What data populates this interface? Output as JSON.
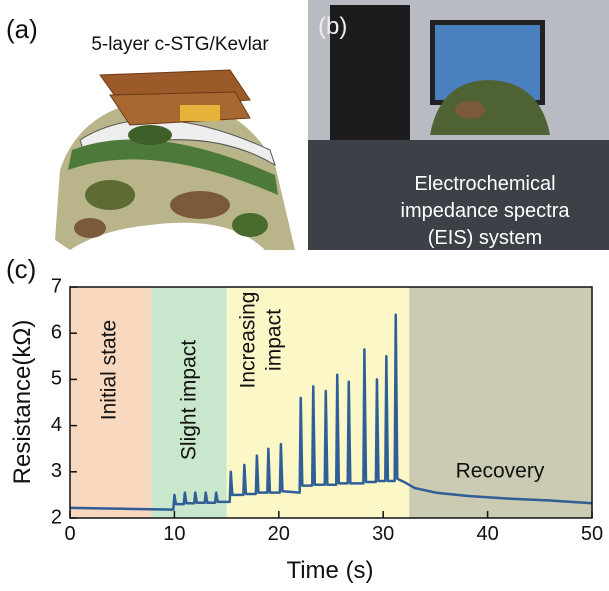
{
  "panel_labels": [
    "(a)",
    "(b)",
    "(c)"
  ],
  "panel_a": {
    "title": "5-layer c-STG/Kevlar"
  },
  "panel_b": {
    "caption": [
      "Electrochemical",
      "impedance spectra",
      "(EIS) system"
    ]
  },
  "chart_data": {
    "type": "line",
    "x_label": "Time (s)",
    "y_label": "Resistance(kΩ)",
    "xlim": [
      0,
      50
    ],
    "ylim": [
      2,
      7
    ],
    "xticks": [
      0,
      10,
      20,
      30,
      40,
      50
    ],
    "yticks": [
      2,
      3,
      4,
      5,
      6,
      7
    ],
    "regions": [
      {
        "label": [
          "Initial state"
        ],
        "start": 0,
        "end": 7.8,
        "color": "#f8d9c0"
      },
      {
        "label": [
          "Slight impact"
        ],
        "start": 7.8,
        "end": 15,
        "color": "#c9e7cc"
      },
      {
        "label": [
          "Increasing",
          "impact"
        ],
        "start": 15,
        "end": 32.5,
        "color": "#fbf7c6"
      },
      {
        "label": [
          "Recovery"
        ],
        "start": 32.5,
        "end": 50,
        "color": "#cbcab2"
      }
    ],
    "series": [
      {
        "color": "#2f5f96",
        "x": [
          0,
          5,
          9.9,
          10,
          10.15,
          10.9,
          11,
          11.15,
          11.9,
          12,
          12.15,
          12.9,
          13,
          13.15,
          13.9,
          14,
          14.15,
          15.3,
          15.4,
          15.55,
          16.6,
          16.7,
          16.85,
          17.8,
          17.9,
          18.05,
          18.9,
          19,
          19.15,
          20.1,
          20.2,
          20.35,
          22,
          22.1,
          22.25,
          23.2,
          23.3,
          23.45,
          24.4,
          24.5,
          24.65,
          25.5,
          25.6,
          25.75,
          26.6,
          26.7,
          26.85,
          28.1,
          28.2,
          28.35,
          29.3,
          29.4,
          29.55,
          30.2,
          30.3,
          30.45,
          31.1,
          31.2,
          31.35,
          32,
          33,
          35,
          38,
          42,
          46,
          50
        ],
        "values": [
          2.22,
          2.2,
          2.18,
          2.5,
          2.3,
          2.3,
          2.55,
          2.32,
          2.32,
          2.55,
          2.33,
          2.33,
          2.55,
          2.33,
          2.33,
          2.55,
          2.35,
          2.35,
          3.0,
          2.5,
          2.5,
          3.15,
          2.52,
          2.52,
          3.35,
          2.55,
          2.55,
          3.5,
          2.55,
          2.55,
          3.6,
          2.58,
          2.55,
          4.6,
          2.7,
          2.7,
          4.85,
          2.72,
          2.72,
          4.75,
          2.72,
          2.72,
          5.1,
          2.75,
          2.75,
          4.95,
          2.75,
          2.75,
          5.65,
          2.78,
          2.78,
          5.0,
          2.8,
          2.8,
          5.5,
          2.8,
          2.8,
          6.4,
          2.85,
          2.78,
          2.65,
          2.55,
          2.48,
          2.42,
          2.38,
          2.32
        ]
      }
    ]
  }
}
